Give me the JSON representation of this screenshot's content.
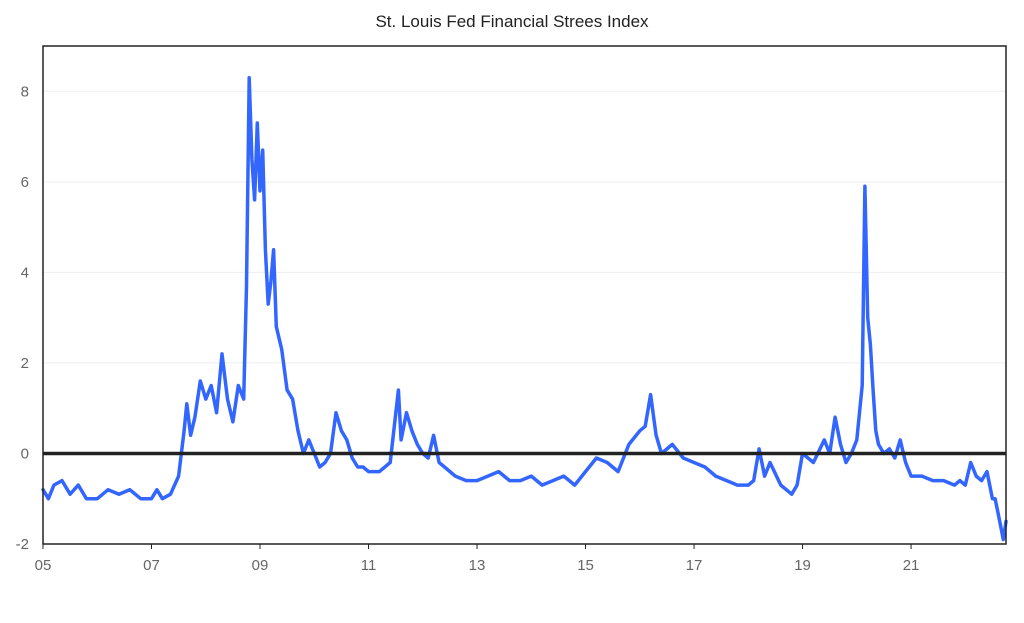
{
  "chart_data": {
    "type": "line",
    "title": "St. Louis Fed Financial Strees Index",
    "xlabel": "",
    "ylabel": "",
    "x_ticks": [
      "05",
      "07",
      "09",
      "11",
      "13",
      "15",
      "17",
      "19",
      "21"
    ],
    "x_tick_years": [
      2005,
      2007,
      2009,
      2011,
      2013,
      2015,
      2017,
      2019,
      2021
    ],
    "y_ticks": [
      "8",
      "6",
      "4",
      "2",
      "0",
      "-2"
    ],
    "y_tick_values": [
      8,
      6,
      4,
      2,
      0,
      -2
    ],
    "xlim": [
      2005,
      2022.75
    ],
    "ylim": [
      -2,
      9
    ],
    "grid": true,
    "zero_line": true,
    "series": [
      {
        "color": "#3366ff",
        "x": [
          2005.0,
          2005.1,
          2005.2,
          2005.35,
          2005.5,
          2005.65,
          2005.8,
          2006.0,
          2006.2,
          2006.4,
          2006.6,
          2006.8,
          2007.0,
          2007.1,
          2007.2,
          2007.35,
          2007.5,
          2007.6,
          2007.65,
          2007.72,
          2007.8,
          2007.9,
          2008.0,
          2008.1,
          2008.2,
          2008.3,
          2008.4,
          2008.5,
          2008.6,
          2008.7,
          2008.75,
          2008.8,
          2008.85,
          2008.9,
          2008.95,
          2009.0,
          2009.05,
          2009.1,
          2009.15,
          2009.2,
          2009.25,
          2009.3,
          2009.4,
          2009.5,
          2009.6,
          2009.7,
          2009.8,
          2009.9,
          2010.0,
          2010.1,
          2010.2,
          2010.3,
          2010.4,
          2010.5,
          2010.6,
          2010.7,
          2010.8,
          2010.9,
          2011.0,
          2011.2,
          2011.4,
          2011.55,
          2011.6,
          2011.7,
          2011.8,
          2011.9,
          2012.0,
          2012.1,
          2012.2,
          2012.3,
          2012.4,
          2012.6,
          2012.8,
          2013.0,
          2013.2,
          2013.4,
          2013.6,
          2013.8,
          2014.0,
          2014.2,
          2014.4,
          2014.6,
          2014.8,
          2015.0,
          2015.2,
          2015.4,
          2015.6,
          2015.8,
          2016.0,
          2016.1,
          2016.2,
          2016.3,
          2016.4,
          2016.6,
          2016.8,
          2017.0,
          2017.2,
          2017.4,
          2017.6,
          2017.8,
          2018.0,
          2018.1,
          2018.2,
          2018.3,
          2018.4,
          2018.6,
          2018.8,
          2018.9,
          2019.0,
          2019.2,
          2019.4,
          2019.5,
          2019.6,
          2019.7,
          2019.8,
          2019.9,
          2020.0,
          2020.1,
          2020.15,
          2020.2,
          2020.25,
          2020.3,
          2020.35,
          2020.4,
          2020.5,
          2020.6,
          2020.7,
          2020.8,
          2020.9,
          2021.0,
          2021.2,
          2021.4,
          2021.6,
          2021.8,
          2021.9,
          2022.0,
          2022.1,
          2022.2,
          2022.3,
          2022.4,
          2022.5,
          2022.55,
          2022.6,
          2022.65,
          2022.7,
          2022.75
        ],
        "values": [
          -0.8,
          -1.0,
          -0.7,
          -0.6,
          -0.9,
          -0.7,
          -1.0,
          -1.0,
          -0.8,
          -0.9,
          -0.8,
          -1.0,
          -1.0,
          -0.8,
          -1.0,
          -0.9,
          -0.5,
          0.5,
          1.1,
          0.4,
          0.8,
          1.6,
          1.2,
          1.5,
          0.9,
          2.2,
          1.2,
          0.7,
          1.5,
          1.2,
          3.7,
          8.3,
          6.5,
          5.6,
          7.3,
          5.8,
          6.7,
          4.5,
          3.3,
          3.8,
          4.5,
          2.8,
          2.3,
          1.4,
          1.2,
          0.5,
          0.0,
          0.3,
          0.0,
          -0.3,
          -0.2,
          0.0,
          0.9,
          0.5,
          0.3,
          -0.1,
          -0.3,
          -0.3,
          -0.4,
          -0.4,
          -0.2,
          1.4,
          0.3,
          0.9,
          0.5,
          0.2,
          0.0,
          -0.1,
          0.4,
          -0.2,
          -0.3,
          -0.5,
          -0.6,
          -0.6,
          -0.5,
          -0.4,
          -0.6,
          -0.6,
          -0.5,
          -0.7,
          -0.6,
          -0.5,
          -0.7,
          -0.4,
          -0.1,
          -0.2,
          -0.4,
          0.2,
          0.5,
          0.6,
          1.3,
          0.4,
          0.0,
          0.2,
          -0.1,
          -0.2,
          -0.3,
          -0.5,
          -0.6,
          -0.7,
          -0.7,
          -0.6,
          0.1,
          -0.5,
          -0.2,
          -0.7,
          -0.9,
          -0.7,
          0.0,
          -0.2,
          0.3,
          0.0,
          0.8,
          0.2,
          -0.2,
          0.0,
          0.3,
          1.5,
          5.9,
          3.0,
          2.4,
          1.4,
          0.5,
          0.2,
          0.0,
          0.1,
          -0.1,
          0.3,
          -0.2,
          -0.5,
          -0.5,
          -0.6,
          -0.6,
          -0.7,
          -0.6,
          -0.7,
          -0.2,
          -0.5,
          -0.6,
          -0.4,
          -1.0,
          -1.0,
          -1.3,
          -1.6,
          -1.9,
          -1.5
        ]
      }
    ]
  }
}
